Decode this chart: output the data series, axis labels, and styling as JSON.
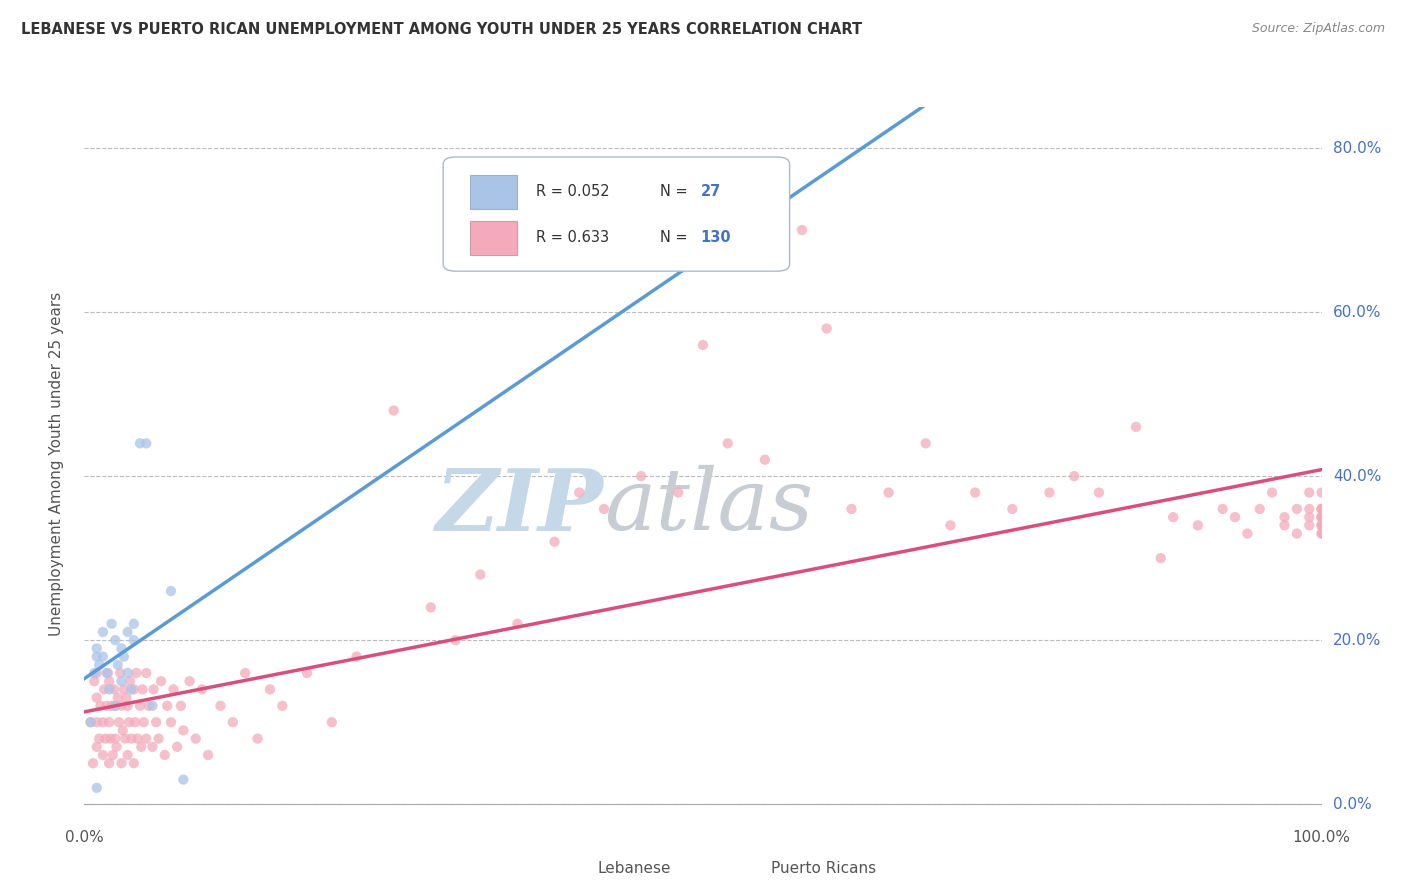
{
  "title": "LEBANESE VS PUERTO RICAN UNEMPLOYMENT AMONG YOUTH UNDER 25 YEARS CORRELATION CHART",
  "source": "Source: ZipAtlas.com",
  "ylabel": "Unemployment Among Youth under 25 years",
  "xlabel_ticks": [
    "0.0%",
    "",
    "",
    "",
    "",
    "",
    "",
    "",
    "",
    "",
    "100.0%"
  ],
  "ylabel_ticks_right": [
    "0.0%",
    "20.0%",
    "40.0%",
    "60.0%",
    "80.0%"
  ],
  "xlim": [
    0,
    1
  ],
  "ylim": [
    -0.02,
    0.85
  ],
  "legend_label1": "Lebanese",
  "legend_label2": "Puerto Ricans",
  "R1": 0.052,
  "N1": 27,
  "R2": 0.633,
  "N2": 130,
  "color_lebanese": "#aac4e8",
  "color_pr": "#f4aabb",
  "color_line_lebanese": "#5b9bd5",
  "color_line_pr": "#d94f7c",
  "color_text_blue": "#4472c4",
  "watermark_zip_color": "#c8d8e8",
  "watermark_atlas_color": "#c0c8d0",
  "background_color": "#ffffff",
  "scatter_alpha": 0.75,
  "scatter_size": 55,
  "lebanese_x": [
    0.005,
    0.008,
    0.01,
    0.01,
    0.01,
    0.012,
    0.015,
    0.015,
    0.018,
    0.02,
    0.022,
    0.025,
    0.025,
    0.027,
    0.03,
    0.03,
    0.032,
    0.035,
    0.035,
    0.038,
    0.04,
    0.04,
    0.045,
    0.05,
    0.055,
    0.07,
    0.08
  ],
  "lebanese_y": [
    0.1,
    0.16,
    0.02,
    0.18,
    0.19,
    0.17,
    0.18,
    0.21,
    0.16,
    0.14,
    0.22,
    0.12,
    0.2,
    0.17,
    0.19,
    0.15,
    0.18,
    0.21,
    0.16,
    0.14,
    0.2,
    0.22,
    0.44,
    0.44,
    0.12,
    0.26,
    0.03
  ],
  "pr_x": [
    0.005,
    0.007,
    0.008,
    0.01,
    0.01,
    0.01,
    0.01,
    0.012,
    0.013,
    0.015,
    0.015,
    0.016,
    0.017,
    0.018,
    0.019,
    0.02,
    0.02,
    0.02,
    0.021,
    0.022,
    0.023,
    0.024,
    0.025,
    0.025,
    0.026,
    0.027,
    0.028,
    0.029,
    0.03,
    0.03,
    0.031,
    0.032,
    0.033,
    0.034,
    0.035,
    0.035,
    0.036,
    0.037,
    0.038,
    0.04,
    0.04,
    0.041,
    0.042,
    0.043,
    0.045,
    0.046,
    0.047,
    0.048,
    0.05,
    0.05,
    0.052,
    0.055,
    0.056,
    0.058,
    0.06,
    0.062,
    0.065,
    0.067,
    0.07,
    0.072,
    0.075,
    0.078,
    0.08,
    0.085,
    0.09,
    0.095,
    0.1,
    0.11,
    0.12,
    0.13,
    0.14,
    0.15,
    0.16,
    0.18,
    0.2,
    0.22,
    0.25,
    0.28,
    0.3,
    0.32,
    0.35,
    0.38,
    0.4,
    0.42,
    0.45,
    0.48,
    0.5,
    0.52,
    0.55,
    0.58,
    0.6,
    0.62,
    0.65,
    0.68,
    0.7,
    0.72,
    0.75,
    0.78,
    0.8,
    0.82,
    0.85,
    0.87,
    0.88,
    0.9,
    0.92,
    0.93,
    0.94,
    0.95,
    0.96,
    0.97,
    0.97,
    0.98,
    0.98,
    0.99,
    0.99,
    0.99,
    0.99,
    1.0,
    1.0,
    1.0,
    1.0,
    1.0,
    1.0,
    1.0,
    1.0,
    1.0,
    1.0,
    1.0,
    1.0,
    1.0
  ],
  "pr_y": [
    0.1,
    0.05,
    0.15,
    0.07,
    0.1,
    0.13,
    0.16,
    0.08,
    0.12,
    0.06,
    0.1,
    0.14,
    0.08,
    0.12,
    0.16,
    0.05,
    0.1,
    0.15,
    0.08,
    0.12,
    0.06,
    0.14,
    0.08,
    0.12,
    0.07,
    0.13,
    0.1,
    0.16,
    0.05,
    0.12,
    0.09,
    0.14,
    0.08,
    0.13,
    0.06,
    0.12,
    0.1,
    0.15,
    0.08,
    0.05,
    0.14,
    0.1,
    0.16,
    0.08,
    0.12,
    0.07,
    0.14,
    0.1,
    0.08,
    0.16,
    0.12,
    0.07,
    0.14,
    0.1,
    0.08,
    0.15,
    0.06,
    0.12,
    0.1,
    0.14,
    0.07,
    0.12,
    0.09,
    0.15,
    0.08,
    0.14,
    0.06,
    0.12,
    0.1,
    0.16,
    0.08,
    0.14,
    0.12,
    0.16,
    0.1,
    0.18,
    0.48,
    0.24,
    0.2,
    0.28,
    0.22,
    0.32,
    0.38,
    0.36,
    0.4,
    0.38,
    0.56,
    0.44,
    0.42,
    0.7,
    0.58,
    0.36,
    0.38,
    0.44,
    0.34,
    0.38,
    0.36,
    0.38,
    0.4,
    0.38,
    0.46,
    0.3,
    0.35,
    0.34,
    0.36,
    0.35,
    0.33,
    0.36,
    0.38,
    0.34,
    0.35,
    0.36,
    0.33,
    0.35,
    0.34,
    0.36,
    0.38,
    0.34,
    0.35,
    0.36,
    0.33,
    0.35,
    0.34,
    0.36,
    0.38,
    0.35,
    0.34,
    0.36,
    0.33,
    0.35
  ]
}
